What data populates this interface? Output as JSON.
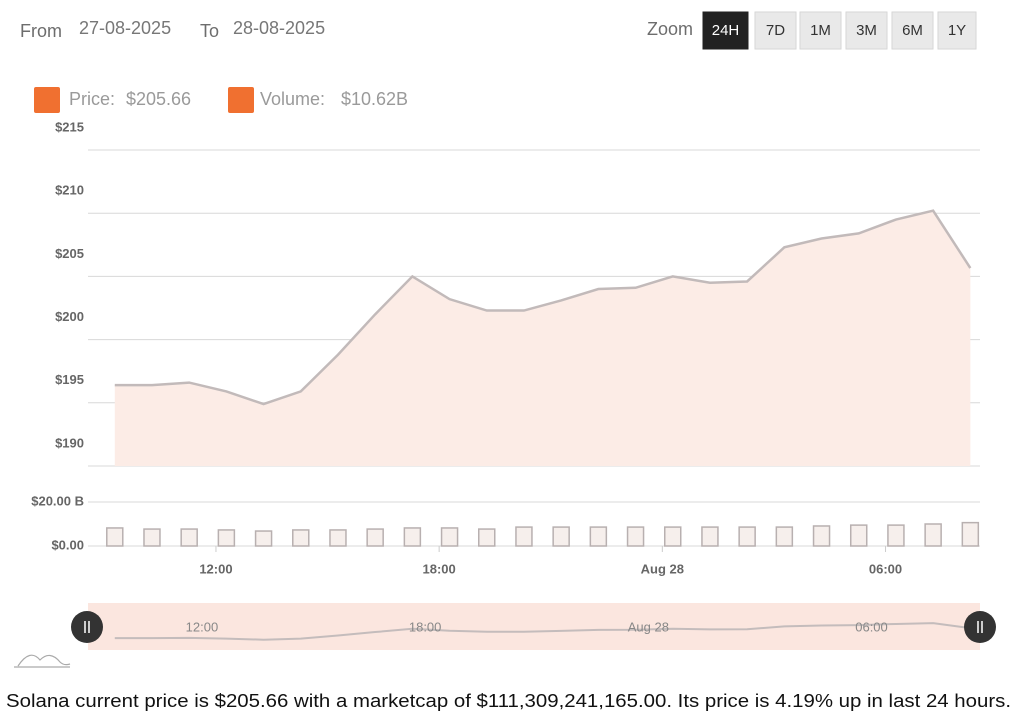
{
  "controls": {
    "from_label": "From",
    "from": "27-08-2025",
    "to_label": "To",
    "to": "28-08-2025",
    "zoom_label": "Zoom",
    "zoom_options": [
      "24H",
      "7D",
      "1M",
      "3M",
      "6M",
      "1Y"
    ],
    "zoom_selected": 0
  },
  "chart_data": [
    {
      "type": "area",
      "xlim": [
        8.56,
        32.54
      ],
      "ylim": [
        190,
        215
      ],
      "yticks": [
        {
          "value": 190,
          "label": "$190"
        },
        {
          "value": 195,
          "label": "$195"
        },
        {
          "value": 200,
          "label": "$200"
        },
        {
          "value": 205,
          "label": "$205"
        },
        {
          "value": 210,
          "label": "$210"
        },
        {
          "value": 215,
          "label": "$215"
        }
      ],
      "xticks": [
        {
          "value": 12,
          "label": "12:00"
        },
        {
          "value": 18,
          "label": "18:00"
        },
        {
          "value": 24,
          "label": "Aug 28"
        },
        {
          "value": 30,
          "label": "06:00"
        }
      ],
      "x": [
        9.28,
        10.28,
        11.28,
        12.28,
        13.28,
        14.28,
        15.28,
        16.28,
        17.28,
        18.28,
        19.28,
        20.28,
        21.28,
        22.28,
        23.28,
        24.28,
        25.28,
        26.28,
        27.28,
        28.28,
        29.28,
        30.28,
        31.28,
        32.28
      ],
      "grid": true,
      "series": [
        {
          "name": "Price:",
          "legend_value": "$205.66",
          "color": "#f07030",
          "line_color": "#c2baba",
          "fill_color": "#fcece6",
          "values": [
            196.4,
            196.4,
            196.6,
            195.9,
            194.9,
            195.9,
            198.8,
            202.0,
            205.0,
            203.2,
            202.3,
            202.3,
            203.1,
            204.0,
            204.1,
            205.0,
            204.5,
            204.6,
            207.3,
            208.0,
            208.4,
            209.5,
            210.2,
            205.66
          ]
        }
      ]
    },
    {
      "type": "bar",
      "xlim": [
        8.56,
        32.54
      ],
      "ylim": [
        0,
        20000000000
      ],
      "yticks": [
        {
          "value": 0,
          "label": "$0.00"
        },
        {
          "value": 20000000000,
          "label": "$20.00 B"
        }
      ],
      "x": [
        9.28,
        10.28,
        11.28,
        12.28,
        13.28,
        14.28,
        15.28,
        16.28,
        17.28,
        18.28,
        19.28,
        20.28,
        21.28,
        22.28,
        23.28,
        24.28,
        25.28,
        26.28,
        27.28,
        28.28,
        29.28,
        30.28,
        31.28,
        32.28
      ],
      "grid": true,
      "series": [
        {
          "name": "Volume:",
          "legend_value": "$10.62B",
          "color": "#f07030",
          "bar_fill": "#f6efec",
          "bar_stroke": "#b8b0b0",
          "values": [
            8200000000,
            7700000000,
            7700000000,
            7300000000,
            6800000000,
            7300000000,
            7300000000,
            7700000000,
            8200000000,
            8200000000,
            7700000000,
            8600000000,
            8600000000,
            8600000000,
            8600000000,
            8600000000,
            8600000000,
            8600000000,
            8600000000,
            9100000000,
            9500000000,
            9500000000,
            10000000000,
            10620000000
          ]
        }
      ]
    }
  ],
  "footer": "Solana current price is $205.66 with a marketcap of $111,309,241,165.00. Its price is 4.19% up in last 24 hours."
}
